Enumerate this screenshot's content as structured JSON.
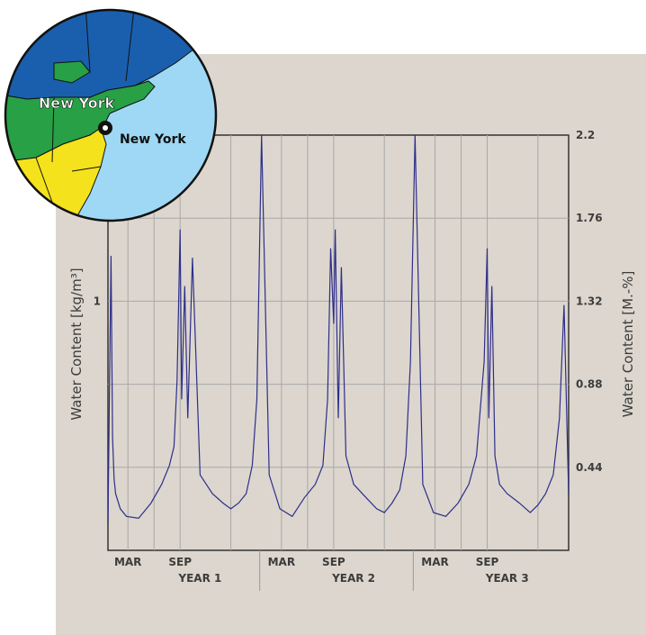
{
  "map": {
    "region_label": "New York",
    "city_label": "New York",
    "colors": {
      "water": "#9ed8f5",
      "dark_blue": "#1a5fad",
      "green": "#27a046",
      "yellow": "#f4e21c"
    },
    "icons": [
      "city-marker-icon"
    ]
  },
  "chart_data": {
    "type": "line",
    "ylabel_left": "Water Content [kg/m³]",
    "ylabel_right": "Water Content [M.-%]",
    "left_ticks": [
      {
        "value": 1,
        "label": "1"
      }
    ],
    "right_ticks": [
      {
        "value": 0.44,
        "label": "0.44"
      },
      {
        "value": 0.88,
        "label": "0.88"
      },
      {
        "value": 1.32,
        "label": "1.32"
      },
      {
        "value": 1.76,
        "label": "1.76"
      },
      {
        "value": 2.2,
        "label": "2.2"
      }
    ],
    "ylim_right": [
      0,
      2.2
    ],
    "x_month_labels": [
      {
        "t": 0.13,
        "label": "MAR"
      },
      {
        "t": 0.47,
        "label": "SEP"
      },
      {
        "t": 1.13,
        "label": "MAR"
      },
      {
        "t": 1.47,
        "label": "SEP"
      },
      {
        "t": 2.13,
        "label": "MAR"
      },
      {
        "t": 2.47,
        "label": "SEP"
      }
    ],
    "x_year_labels": [
      "YEAR 1",
      "YEAR 2",
      "YEAR 3"
    ],
    "xlim_years": [
      0,
      3
    ],
    "grid": true,
    "line_color": "#2e2e8a",
    "series": [
      {
        "x": [
          0,
          0.02,
          0.03,
          0.04,
          0.05,
          0.08,
          0.12,
          0.2,
          0.28,
          0.35,
          0.4,
          0.43,
          0.45,
          0.47,
          0.48,
          0.5,
          0.52,
          0.55,
          0.6,
          0.68,
          0.75,
          0.8,
          0.85,
          0.9,
          0.94,
          0.97,
          1.0,
          1.05,
          1.12,
          1.2,
          1.28,
          1.35,
          1.4,
          1.43,
          1.45,
          1.47,
          1.48,
          1.5,
          1.52,
          1.55,
          1.6,
          1.68,
          1.75,
          1.8,
          1.85,
          1.9,
          1.94,
          1.97,
          2.0,
          2.05,
          2.12,
          2.2,
          2.28,
          2.35,
          2.4,
          2.43,
          2.45,
          2.47,
          2.48,
          2.5,
          2.52,
          2.55,
          2.6,
          2.68,
          2.75,
          2.8,
          2.85,
          2.9,
          2.94,
          2.97,
          3.0
        ],
        "y": [
          0.15,
          1.56,
          0.6,
          0.38,
          0.3,
          0.22,
          0.18,
          0.17,
          0.25,
          0.35,
          0.45,
          0.55,
          0.9,
          1.7,
          0.8,
          1.4,
          0.7,
          1.55,
          0.4,
          0.3,
          0.25,
          0.22,
          0.25,
          0.3,
          0.45,
          0.8,
          2.2,
          0.4,
          0.22,
          0.18,
          0.28,
          0.35,
          0.45,
          0.8,
          1.6,
          1.2,
          1.7,
          0.7,
          1.5,
          0.5,
          0.35,
          0.28,
          0.22,
          0.2,
          0.25,
          0.32,
          0.5,
          1.0,
          2.2,
          0.35,
          0.2,
          0.18,
          0.25,
          0.35,
          0.5,
          0.8,
          1.0,
          1.6,
          0.7,
          1.4,
          0.5,
          0.35,
          0.3,
          0.25,
          0.2,
          0.24,
          0.3,
          0.4,
          0.7,
          1.3,
          0.3
        ]
      }
    ]
  }
}
